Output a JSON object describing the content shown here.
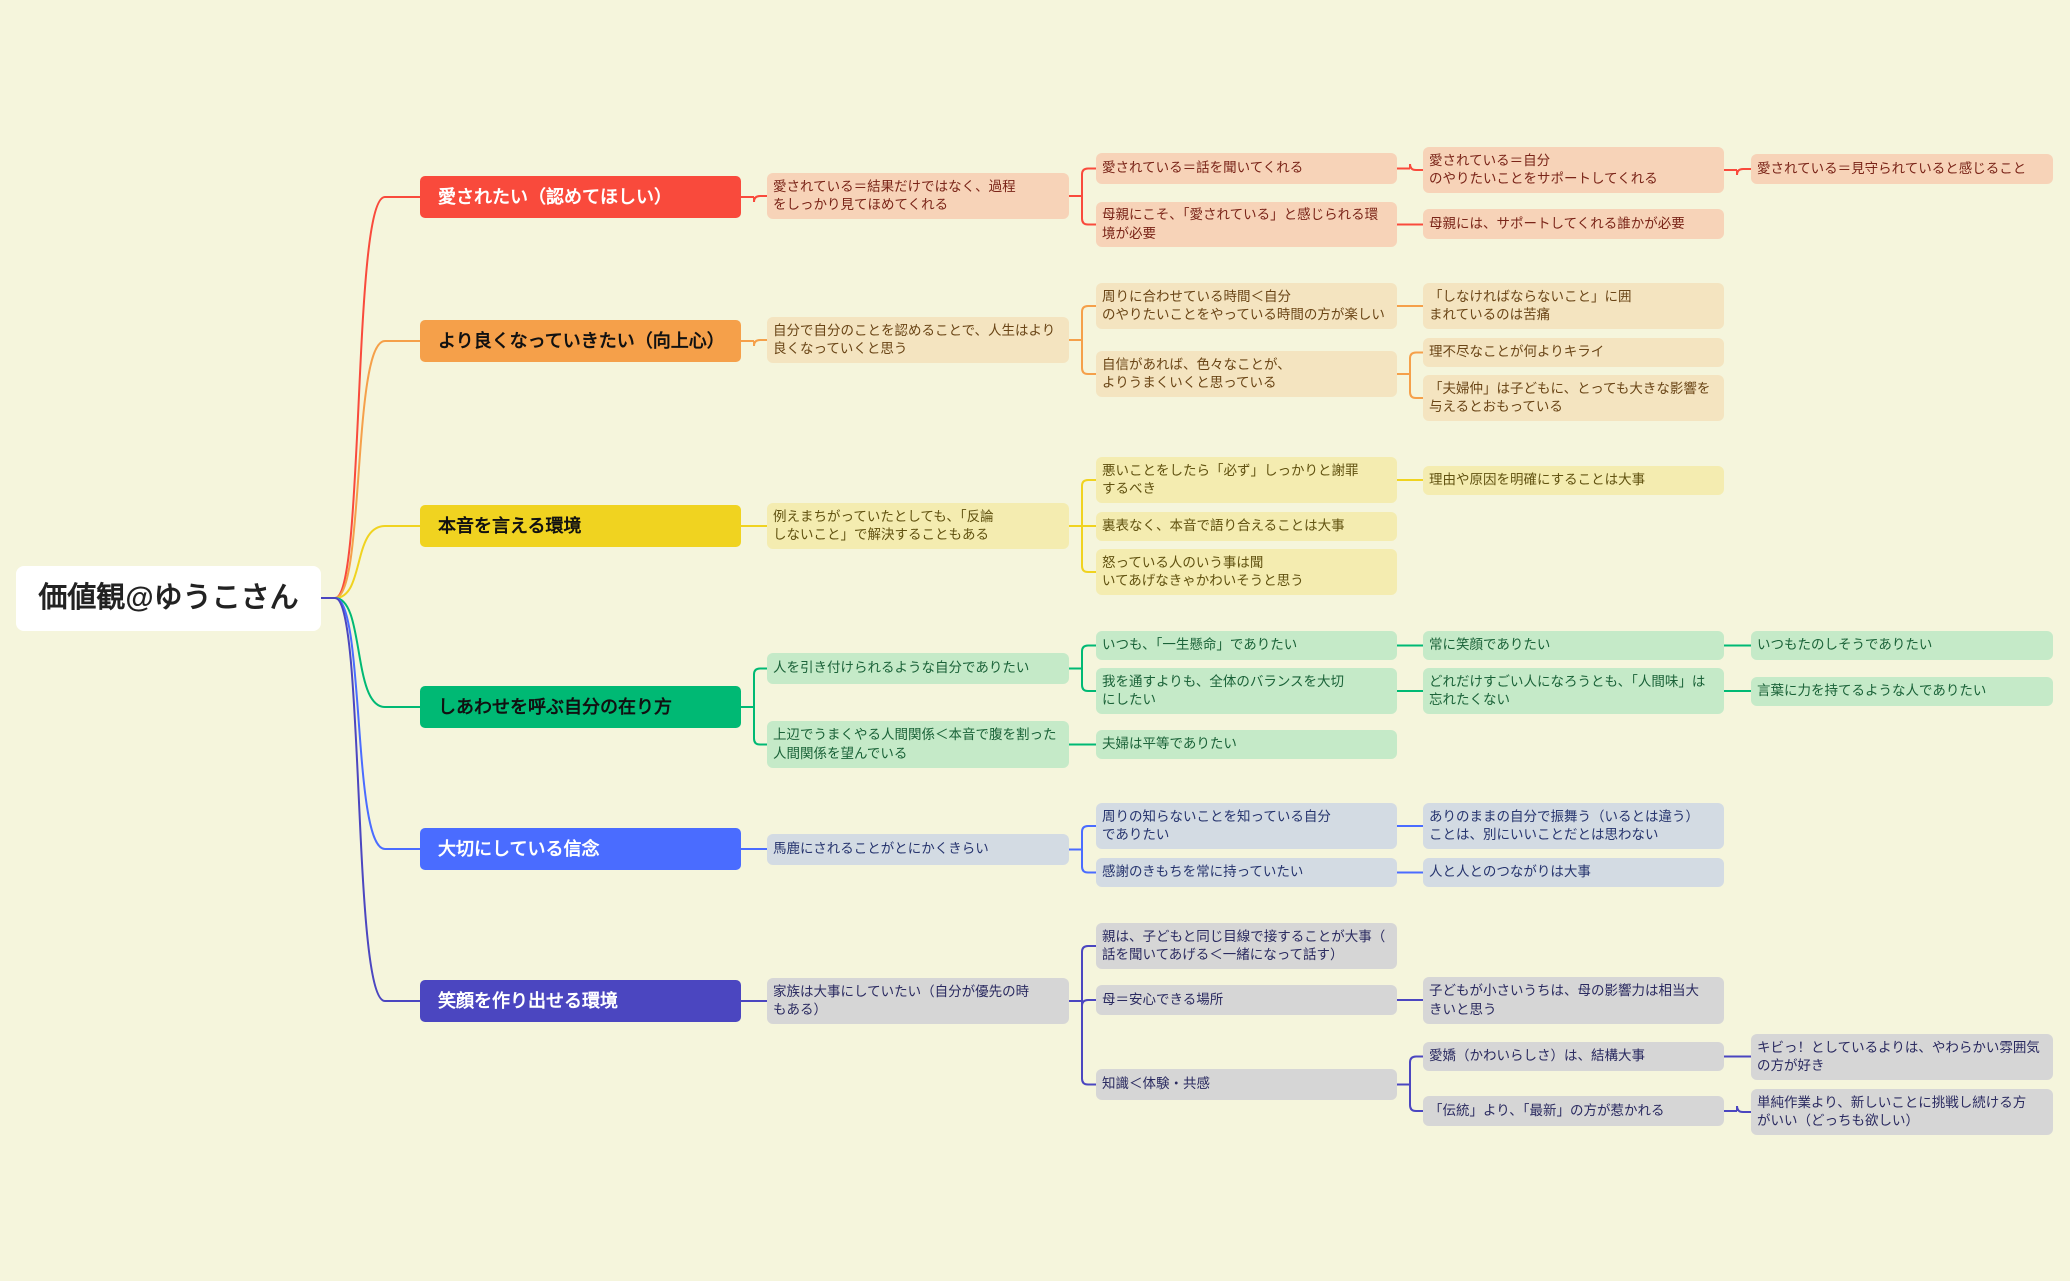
{
  "root": {
    "title": "価値観@ゆうこさん"
  },
  "branches": [
    {
      "label": "愛されたい（認めてほしい）",
      "color": "#f94a3c",
      "light": "#f7d3b8",
      "label_color": "#ffffff",
      "text_color": "#7a2418",
      "children": [
        {
          "text": "愛されている＝結果だけではなく、過程\nをしっかり見てほめてくれる",
          "children": [
            {
              "text": "愛されている＝話を聞いてくれる",
              "children": [
                {
                  "text": "愛されている＝自分\nのやりたいことをサポートしてくれる",
                  "children": [
                    {
                      "text": "愛されている＝見守られていると感じること"
                    }
                  ]
                }
              ]
            },
            {
              "text": "母親にこそ、「愛されている」と感じられる環\n境が必要",
              "children": [
                {
                  "text": "母親には、サポートしてくれる誰かが必要"
                }
              ]
            }
          ]
        }
      ]
    },
    {
      "label": "より良くなっていきたい（向上心）",
      "color": "#f5a04a",
      "light": "#f4e4c0",
      "label_color": "#111111",
      "text_color": "#6a4516",
      "children": [
        {
          "text": "自分で自分のことを認めることで、人生はより\n良くなっていくと思う",
          "children": [
            {
              "text": "周りに合わせている時間＜自分\nのやりたいことをやっている時間の方が楽しい",
              "children": [
                {
                  "text": "「しなければならないこと」に囲\nまれているのは苦痛"
                }
              ]
            },
            {
              "text": "自信があれば、色々なことが、\nよりうまくいくと思っている",
              "children": [
                {
                  "text": "理不尽なことが何よりキライ"
                },
                {
                  "text": "「夫婦仲」は子どもに、とっても大きな影響を\n与えるとおもっている"
                }
              ]
            }
          ]
        }
      ]
    },
    {
      "label": "本音を言える環境",
      "color": "#f0d320",
      "light": "#f4ecb0",
      "label_color": "#111111",
      "text_color": "#615210",
      "children": [
        {
          "text": "例えまちがっていたとしても、「反論\nしないこと」で解決することもある",
          "children": [
            {
              "text": "悪いことをしたら「必ず」しっかりと謝罪\nするべき",
              "children": [
                {
                  "text": "理由や原因を明確にすることは大事"
                }
              ]
            },
            {
              "text": "裏表なく、本音で語り合えることは大事"
            },
            {
              "text": "怒っている人のいう事は聞\nいてあげなきゃかわいそうと思う"
            }
          ]
        }
      ]
    },
    {
      "label": "しあわせを呼ぶ自分の在り方",
      "color": "#00b974",
      "light": "#c5eac8",
      "label_color": "#111111",
      "text_color": "#1a6238",
      "children": [
        {
          "text": "人を引き付けられるような自分でありたい",
          "children": [
            {
              "text": "いつも、「一生懸命」でありたい",
              "children": [
                {
                  "text": "常に笑顔でありたい",
                  "children": [
                    {
                      "text": "いつもたのしそうでありたい"
                    }
                  ]
                }
              ]
            },
            {
              "text": "我を通すよりも、全体のバランスを大切\nにしたい",
              "children": [
                {
                  "text": "どれだけすごい人になろうとも、「人間味」は\n忘れたくない",
                  "children": [
                    {
                      "text": "言葉に力を持てるような人でありたい"
                    }
                  ]
                }
              ]
            }
          ]
        },
        {
          "text": "上辺でうまくやる人間関係＜本音で腹を割った\n人間関係を望んでいる",
          "children": [
            {
              "text": "夫婦は平等でありたい"
            }
          ]
        }
      ]
    },
    {
      "label": "大切にしている信念",
      "color": "#4a6cff",
      "light": "#d3dbe3",
      "label_color": "#ffffff",
      "text_color": "#26346e",
      "children": [
        {
          "text": "馬鹿にされることがとにかくきらい",
          "children": [
            {
              "text": "周りの知らないことを知っている自分\nでありたい",
              "children": [
                {
                  "text": "ありのままの自分で振舞う（いるとは違う）\nことは、別にいいことだとは思わない"
                }
              ]
            },
            {
              "text": "感謝のきもちを常に持っていたい",
              "children": [
                {
                  "text": "人と人とのつながりは大事"
                }
              ]
            }
          ]
        }
      ]
    },
    {
      "label": "笑顔を作り出せる環境",
      "color": "#4b46c0",
      "light": "#d6d6d6",
      "label_color": "#ffffff",
      "text_color": "#2a2a60",
      "children": [
        {
          "text": "家族は大事にしていたい（自分が優先の時\nもある）",
          "children": [
            {
              "text": "親は、子どもと同じ目線で接することが大事（\n話を聞いてあげる＜一緒になって話す）"
            },
            {
              "text": "母＝安心できる場所",
              "children": [
                {
                  "text": "子どもが小さいうちは、母の影響力は相当大\nきいと思う"
                }
              ]
            },
            {
              "text": "知識＜体験・共感",
              "children": [
                {
                  "text": "愛嬌（かわいらしさ）は、結構大事",
                  "children": [
                    {
                      "text": "キビっ！としているよりは、やわらかい雰囲気\nの方が好き"
                    }
                  ]
                },
                {
                  "text": "「伝統」より、「最新」の方が惹かれる",
                  "children": [
                    {
                      "text": "単純作業より、新しいことに挑戦し続ける方\nがいい（どっちも欲しい）"
                    }
                  ]
                }
              ]
            }
          ]
        }
      ]
    }
  ]
}
